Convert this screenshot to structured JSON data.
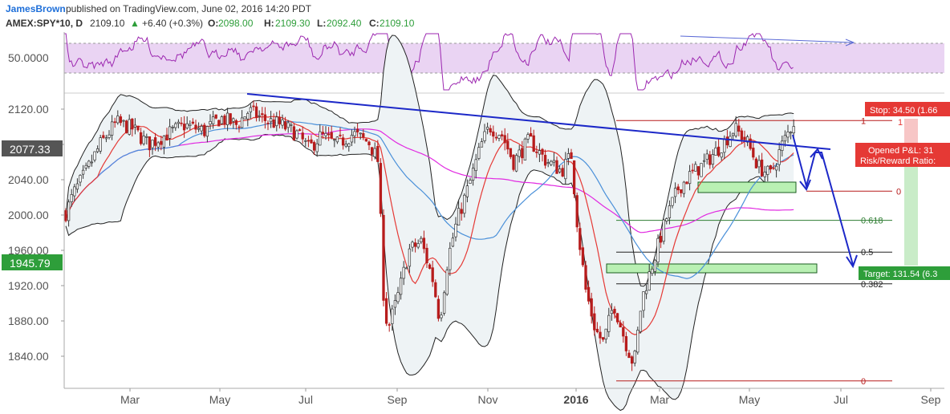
{
  "header": {
    "author": "JamesBrown",
    "published": "published on TradingView.com, June 02, 2016 14:20 PDT",
    "symbol": "AMEX:SPY*10, D",
    "last": "2109.10",
    "change": "+6.40 (+0.3%)",
    "o_label": "O:",
    "o_value": "2098.00",
    "h_label": "H:",
    "h_value": "2109.30",
    "l_label": "L:",
    "l_value": "2092.40",
    "c_label": "C:",
    "c_value": "2109.10"
  },
  "colors": {
    "up": "#333333",
    "down": "#b71c1c",
    "rsi": "#9c27b0",
    "rsi_band": "#ead4f3",
    "trend": "#1c28c8",
    "bb_fill": "#eef3f5",
    "red_ma": "#e53935",
    "magenta_ma": "#e12ae1",
    "blue_ma": "#4a90d9",
    "green_zone": "#b9f0b3",
    "stop": "#e53935",
    "target": "#2e9e3a"
  },
  "chart_data": {
    "type": "candlestick",
    "ylim": [
      1810,
      2150
    ],
    "price_ticks": [
      "2120.00",
      "2080.00",
      "2040.00",
      "2000.00",
      "1960.00",
      "1920.00",
      "1880.00",
      "1840.00"
    ],
    "current_price_label": "2077.33",
    "highlight_price_label": "1945.79",
    "x_ticks": [
      "Mar",
      "May",
      "Jul",
      "Sep",
      "Nov",
      "2016",
      "Mar",
      "May",
      "Jul",
      "Sep"
    ],
    "rsi_label": "50.0000",
    "fib_levels": [
      {
        "label": "1",
        "price": 2107
      },
      {
        "label": "0",
        "price": 2027
      },
      {
        "label": "0.618",
        "price": 1994
      },
      {
        "label": "0.5",
        "price": 1958
      },
      {
        "label": "0.382",
        "price": 1922
      },
      {
        "label": "0",
        "price": 1812
      }
    ],
    "stop_label": "Stop: 34.50 (1.66",
    "position_label_1": "Opened P&L: 31",
    "position_label_2": "Risk/Reward Ratio:",
    "target_label": "Target: 131.54 (6.3",
    "pos_marker_label": "1"
  }
}
